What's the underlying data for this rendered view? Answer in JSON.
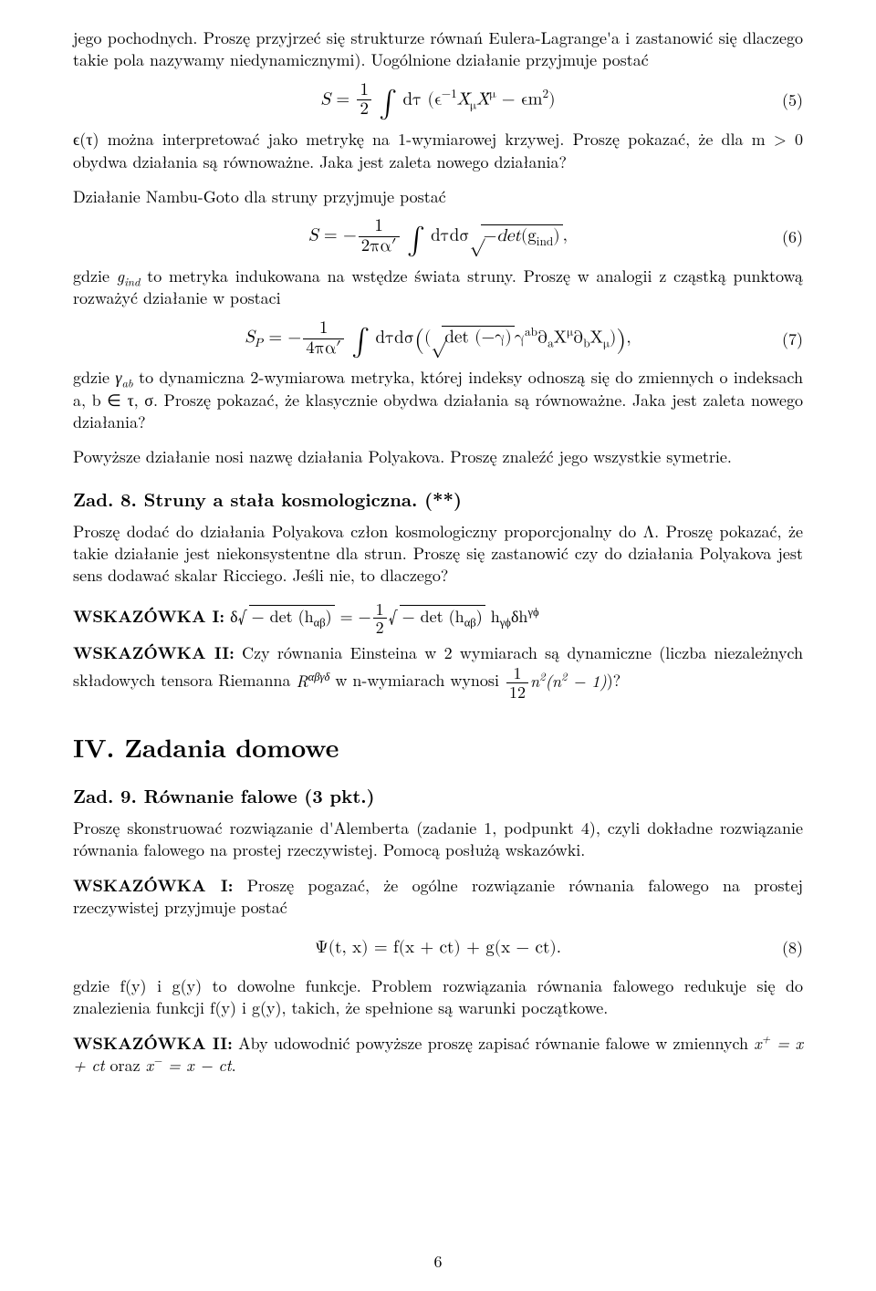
{
  "p1": "jego pochodnych. Proszę przyjrzeć się strukturze równań Eulera-Lagrange'a i zastanowić się dlaczego takie pola nazywamy niedynamicznymi). Uogólnione działanie przyjmuje postać",
  "eq5_num": "(5)",
  "p2": "ϵ(τ) można interpretować jako metrykę na 1-wymiarowej krzywej. Proszę pokazać, że dla m > 0 obydwa działania są równoważne. Jaka jest zaleta nowego działania?",
  "p3": "Działanie Nambu-Goto dla struny przyjmuje postać",
  "eq6_num": "(6)",
  "p4a": "gdzie ",
  "p4b": " to metryka indukowana na wstędze świata struny. Proszę w analogii z cząstką punktową rozważyć działanie w postaci",
  "eq7_num": "(7)",
  "p5a": "gdzie ",
  "p5b": " to dynamiczna 2-wymiarowa metryka, której indeksy odnoszą się do zmiennych o indeksach a, b ∈ τ, σ. Proszę pokazać, że klasycznie obydwa działania są równoważne. Jaka jest zaleta nowego działania?",
  "p6": "Powyższe działanie nosi nazwę działania Polyakova. Proszę znaleźć jego wszystkie symetrie.",
  "zad8_prefix": "Zad. 8.",
  "zad8_title": " Struny a stała kosmologiczna. (**)",
  "p7": "Proszę dodać do działania Polyakova człon kosmologiczny proporcjonalny do Λ. Proszę pokazać, że takie działanie jest niekonsystentne dla strun. Proszę się zastanowić czy do działania Polyakova jest sens dodawać skalar Ricciego. Jeśli nie, to dlaczego?",
  "hint1_label": "WSKAZÓWKA I:",
  "hint2_label": "WSKAZÓWKA II:",
  "hint2_text_a": " Czy równania Einsteina w 2 wymiarach są dynamiczne (liczba niezależnych składowych tensora Riemanna ",
  "hint2_text_b": " w n-wymiarach wynosi ",
  "hint2_text_c": ")?",
  "section4": "IV. Zadania domowe",
  "zad9_prefix": "Zad. 9.",
  "zad9_title": " Równanie falowe (3 pkt.)",
  "p8": "Proszę skonstruować rozwiązanie d'Alemberta (zadanie 1, podpunkt 4), czyli dokładne rozwiązanie równania falowego na prostej rzeczywistej. Pomocą posłużą wskazówki.",
  "hint3_text": " Proszę pogazać, że ogólne rozwiązanie równania falowego na prostej rzeczywistej przyjmuje postać",
  "eq8_formula": "Ψ(t, x) = f(x + ct) + g(x − ct).",
  "eq8_num": "(8)",
  "p9": "gdzie f(y) i g(y) to dowolne funkcje. Problem rozwiązania równania falowego redukuje się do znalezienia funkcji f(y) i g(y), takich, że spełnione są warunki początkowe.",
  "hint4_text_a": " Aby udowodnić powyższe proszę zapisać równanie falowe w zmiennych ",
  "hint4_text_b": " oraz ",
  "hint4_text_c": ".",
  "pagenum": "6"
}
